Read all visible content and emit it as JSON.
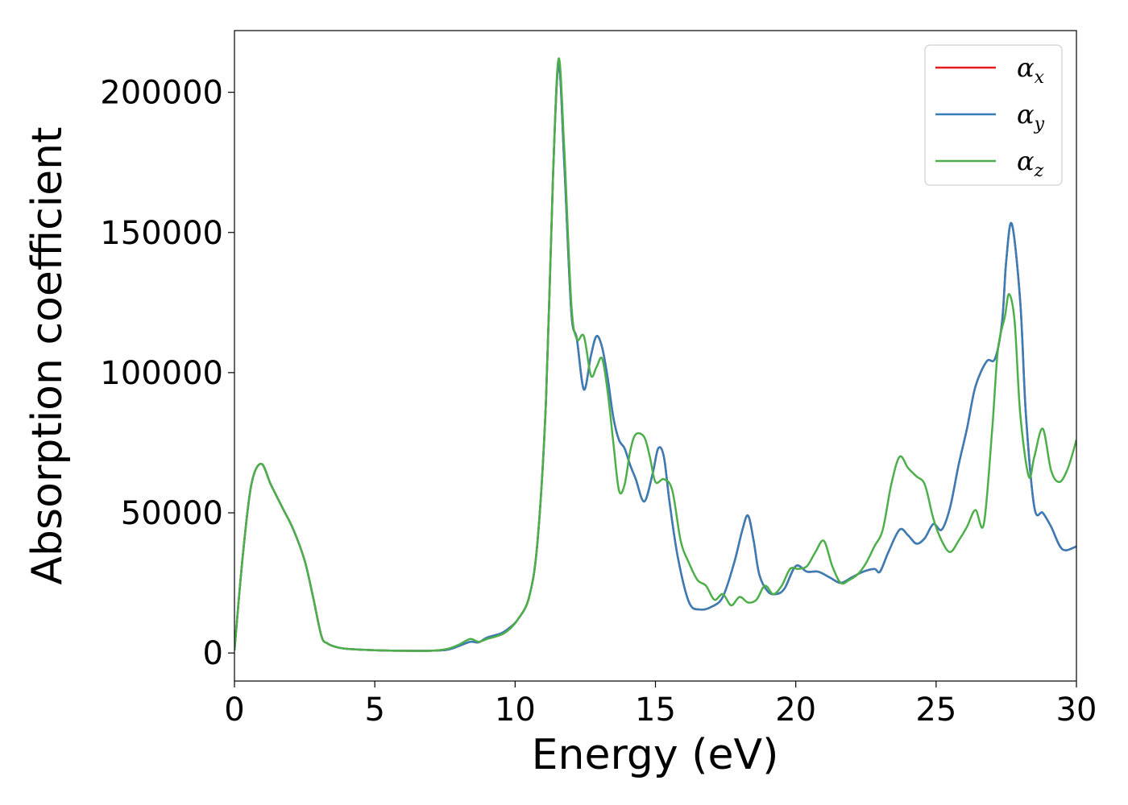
{
  "chart_data": {
    "type": "line",
    "xlabel": "Energy (eV)",
    "ylabel": "Absorption coefficient",
    "xlim": [
      0,
      30
    ],
    "ylim": [
      -10000,
      222000
    ],
    "xticks": [
      0,
      5,
      10,
      15,
      20,
      25,
      30
    ],
    "yticks": [
      0,
      50000,
      100000,
      150000,
      200000
    ],
    "grid": false,
    "legend": {
      "placement": "top-right",
      "entries": [
        {
          "symbol": "α",
          "sub": "x",
          "color": "#e41a1c"
        },
        {
          "symbol": "α",
          "sub": "y",
          "color": "#377eb8"
        },
        {
          "symbol": "α",
          "sub": "z",
          "color": "#4daf4a"
        }
      ]
    },
    "series": [
      {
        "color": "#e41a1c",
        "x": [
          0,
          0.3,
          0.6,
          0.95,
          1.3,
          1.7,
          2.1,
          2.5,
          2.8,
          3.1,
          3.3,
          3.6,
          4.0,
          5.0,
          6.0,
          7.0,
          7.6,
          8.0,
          8.4,
          8.7,
          9.0,
          9.5,
          9.8,
          10.1,
          10.5,
          10.8,
          11.1,
          11.35,
          11.55,
          11.75,
          12.0,
          12.2,
          12.45,
          12.7,
          12.9,
          13.1,
          13.3,
          13.5,
          13.7,
          13.9,
          14.1,
          14.3,
          14.6,
          14.9,
          15.1,
          15.3,
          15.5,
          15.8,
          16.2,
          16.6,
          17.0,
          17.4,
          17.8,
          18.1,
          18.3,
          18.5,
          18.7,
          19.0,
          19.3,
          19.6,
          20.0,
          20.4,
          20.8,
          21.2,
          21.6,
          22.0,
          22.4,
          22.8,
          23.0,
          23.3,
          23.7,
          24.0,
          24.3,
          24.6,
          24.9,
          25.2,
          25.5,
          25.8,
          26.1,
          26.4,
          26.8,
          27.1,
          27.35,
          27.5,
          27.7,
          28.0,
          28.2,
          28.5,
          28.8,
          29.1,
          29.5,
          30.0
        ],
        "y": [
          1000,
          35000,
          60000,
          67500,
          60000,
          52000,
          44000,
          33000,
          20000,
          6000,
          3500,
          2200,
          1500,
          1000,
          800,
          800,
          1200,
          2500,
          4000,
          3800,
          5500,
          7000,
          9000,
          12000,
          20000,
          40000,
          90000,
          170000,
          210000,
          175000,
          122000,
          112000,
          94000,
          106000,
          113000,
          109000,
          98000,
          84000,
          76000,
          73000,
          67000,
          62000,
          54000,
          64000,
          73000,
          70000,
          54000,
          34000,
          18000,
          15500,
          16500,
          20000,
          32000,
          44000,
          49000,
          40000,
          28000,
          22000,
          21000,
          23000,
          31000,
          29000,
          29000,
          27000,
          25000,
          27000,
          29000,
          30000,
          29000,
          36000,
          44000,
          42000,
          39000,
          41000,
          46000,
          44000,
          52000,
          67000,
          80000,
          95000,
          104000,
          105000,
          118000,
          140000,
          153000,
          125000,
          85000,
          52000,
          50000,
          45000,
          37000,
          38000
        ]
      },
      {
        "color": "#377eb8",
        "x": [
          0,
          0.3,
          0.6,
          0.95,
          1.3,
          1.7,
          2.1,
          2.5,
          2.8,
          3.1,
          3.3,
          3.6,
          4.0,
          5.0,
          6.0,
          7.0,
          7.6,
          8.0,
          8.4,
          8.7,
          9.0,
          9.5,
          9.8,
          10.1,
          10.5,
          10.8,
          11.1,
          11.35,
          11.55,
          11.75,
          12.0,
          12.2,
          12.45,
          12.7,
          12.9,
          13.1,
          13.3,
          13.5,
          13.7,
          13.9,
          14.1,
          14.3,
          14.6,
          14.9,
          15.1,
          15.3,
          15.5,
          15.8,
          16.2,
          16.6,
          17.0,
          17.4,
          17.8,
          18.1,
          18.3,
          18.5,
          18.7,
          19.0,
          19.3,
          19.6,
          20.0,
          20.4,
          20.8,
          21.2,
          21.6,
          22.0,
          22.4,
          22.8,
          23.0,
          23.3,
          23.7,
          24.0,
          24.3,
          24.6,
          24.9,
          25.2,
          25.5,
          25.8,
          26.1,
          26.4,
          26.8,
          27.1,
          27.35,
          27.5,
          27.7,
          28.0,
          28.2,
          28.5,
          28.8,
          29.1,
          29.5,
          30.0
        ],
        "y": [
          1000,
          35000,
          60000,
          67500,
          60000,
          52000,
          44000,
          33000,
          20000,
          6000,
          3500,
          2200,
          1500,
          1000,
          800,
          800,
          1200,
          2500,
          4000,
          3800,
          5500,
          7000,
          9000,
          12000,
          20000,
          40000,
          90000,
          170000,
          210000,
          175000,
          122000,
          112000,
          94000,
          106000,
          113000,
          109000,
          98000,
          84000,
          76000,
          73000,
          67000,
          62000,
          54000,
          64000,
          73000,
          70000,
          54000,
          34000,
          18000,
          15500,
          16500,
          20000,
          32000,
          44000,
          49000,
          40000,
          28000,
          22000,
          21000,
          23000,
          31000,
          29000,
          29000,
          27000,
          25000,
          27000,
          29000,
          30000,
          29000,
          36000,
          44000,
          42000,
          39000,
          41000,
          46000,
          44000,
          52000,
          67000,
          80000,
          95000,
          104000,
          105000,
          118000,
          140000,
          153000,
          125000,
          85000,
          52000,
          50000,
          45000,
          37000,
          38000
        ]
      },
      {
        "color": "#4daf4a",
        "x": [
          0,
          0.3,
          0.6,
          0.95,
          1.3,
          1.7,
          2.1,
          2.5,
          2.8,
          3.1,
          3.3,
          3.6,
          4.0,
          5.0,
          6.0,
          7.0,
          7.6,
          8.0,
          8.4,
          8.7,
          9.0,
          9.5,
          9.8,
          10.1,
          10.5,
          10.8,
          11.1,
          11.35,
          11.55,
          11.75,
          12.0,
          12.2,
          12.45,
          12.7,
          12.9,
          13.1,
          13.3,
          13.5,
          13.7,
          13.9,
          14.1,
          14.3,
          14.6,
          14.8,
          15.0,
          15.3,
          15.6,
          15.9,
          16.2,
          16.5,
          16.8,
          17.1,
          17.4,
          17.7,
          18.0,
          18.3,
          18.6,
          18.9,
          19.2,
          19.5,
          19.8,
          20.1,
          20.4,
          20.7,
          21.0,
          21.3,
          21.6,
          21.9,
          22.2,
          22.5,
          22.8,
          23.1,
          23.4,
          23.7,
          24.0,
          24.3,
          24.6,
          24.9,
          25.2,
          25.5,
          25.8,
          26.1,
          26.4,
          26.7,
          27.0,
          27.2,
          27.45,
          27.6,
          27.8,
          28.0,
          28.3,
          28.5,
          28.8,
          29.1,
          29.4,
          29.7,
          30.0
        ],
        "y": [
          1000,
          35000,
          60000,
          67500,
          60000,
          52000,
          44000,
          33000,
          20000,
          6000,
          3500,
          2200,
          1500,
          1000,
          800,
          800,
          1500,
          3000,
          5000,
          4000,
          5000,
          6500,
          8500,
          12000,
          20000,
          40000,
          90000,
          170000,
          212000,
          180000,
          125000,
          112000,
          113000,
          99000,
          102000,
          105000,
          93000,
          75000,
          58000,
          60000,
          72000,
          78000,
          77000,
          70000,
          61000,
          62000,
          58000,
          40000,
          32000,
          26000,
          24000,
          19000,
          21000,
          17000,
          20000,
          18000,
          19000,
          24000,
          21000,
          24000,
          30000,
          30000,
          31000,
          36000,
          40000,
          31000,
          25000,
          26000,
          28000,
          32000,
          38000,
          44000,
          60000,
          70000,
          66000,
          63000,
          60000,
          48000,
          40000,
          36000,
          40000,
          45000,
          51000,
          46000,
          80000,
          108000,
          120000,
          128000,
          118000,
          85000,
          63000,
          70000,
          80000,
          65000,
          61000,
          66000,
          76000
        ]
      }
    ]
  }
}
